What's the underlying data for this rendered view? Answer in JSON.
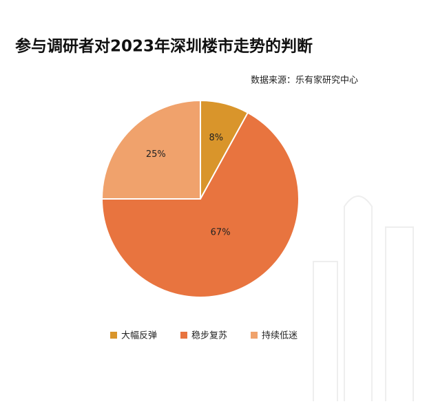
{
  "chart_data": {
    "type": "pie",
    "title": "参与调研者对2023年深圳楼市走势的判断",
    "source": "数据来源：乐有家研究中心",
    "categories": [
      "大幅反弹",
      "稳步复苏",
      "持续低迷"
    ],
    "values": [
      8,
      67,
      25
    ],
    "value_labels": [
      "8%",
      "67%",
      "25%"
    ],
    "colors": [
      "#d9952b",
      "#e8743f",
      "#f0a26c"
    ],
    "legend": "bottom"
  }
}
